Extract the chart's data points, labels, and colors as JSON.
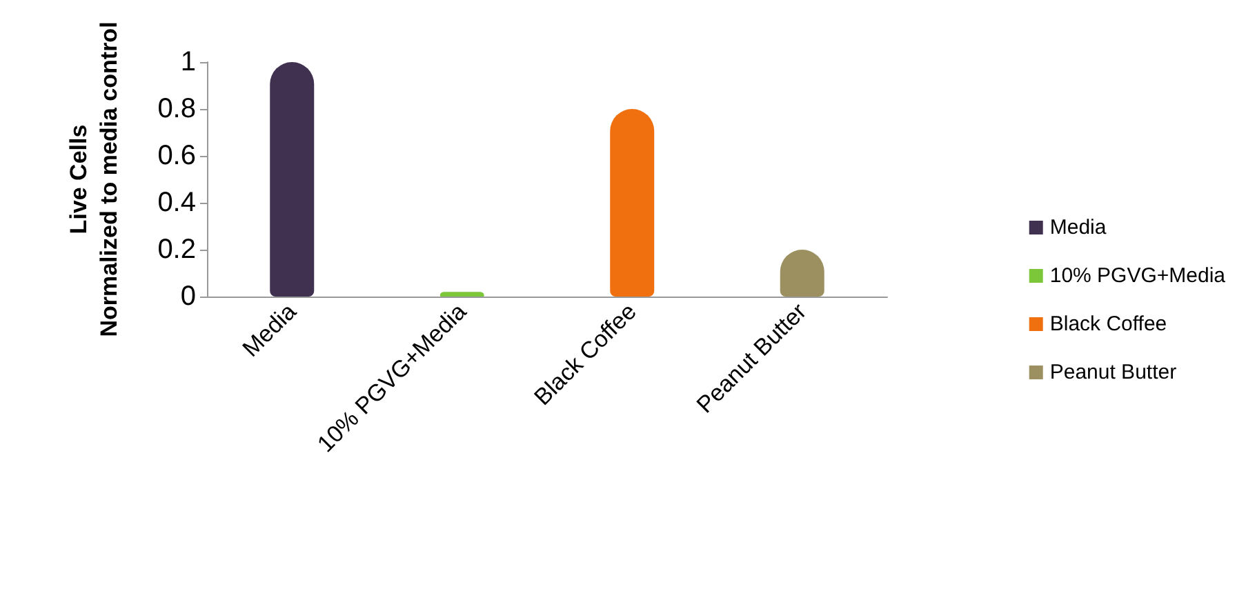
{
  "chart_data": {
    "type": "bar",
    "ylabel": "Live Cells\nNormalized to media control",
    "categories": [
      "Media",
      "10% PGVG+Media",
      "Black Coffee",
      "Peanut Butter"
    ],
    "stacked": true,
    "series": [
      {
        "name": "Media",
        "color": "#403151",
        "values": [
          1.0,
          null,
          null,
          null
        ]
      },
      {
        "name": "10% PGVG+Media",
        "color": "#7cc63a",
        "values": [
          null,
          0.02,
          null,
          null
        ]
      },
      {
        "name": "Black Coffee",
        "color": "#f07010",
        "values": [
          null,
          null,
          0.8,
          null
        ]
      },
      {
        "name": "Peanut Butter",
        "color": "#9c9060",
        "values": [
          null,
          null,
          null,
          0.2
        ]
      }
    ],
    "ylim": [
      0,
      1
    ],
    "yticks": [
      0,
      0.2,
      0.4,
      0.6,
      0.8,
      1
    ],
    "grid": false,
    "legend": "right"
  }
}
